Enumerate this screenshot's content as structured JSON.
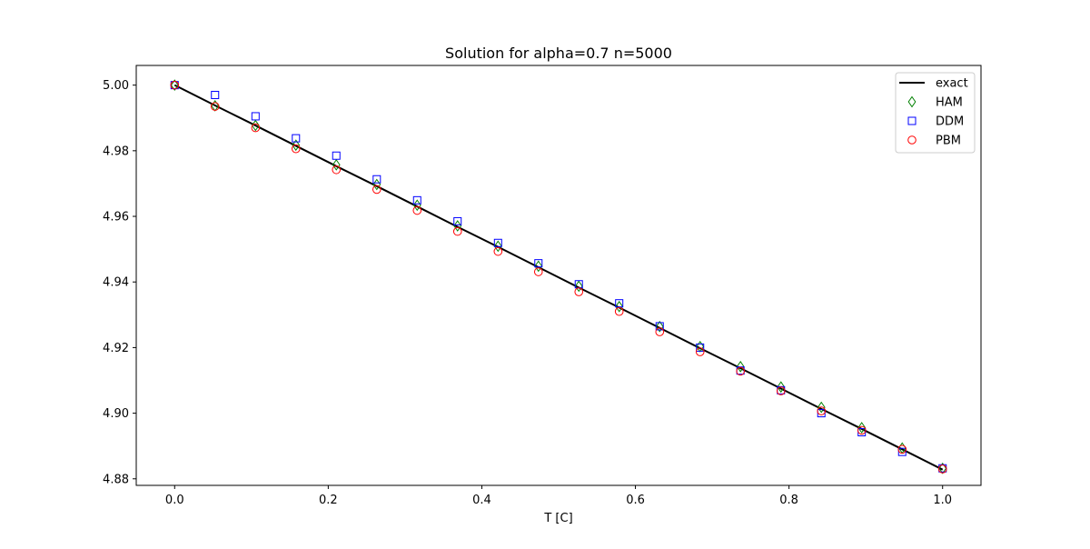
{
  "chart_data": {
    "type": "line",
    "title": "Solution for alpha=0.7 n=5000",
    "xlabel": "T [C]",
    "ylabel": "",
    "xlim": [
      -0.05,
      1.05
    ],
    "ylim": [
      4.878,
      5.006
    ],
    "xticks": [
      0.0,
      0.2,
      0.4,
      0.6,
      0.8,
      1.0
    ],
    "xtick_labels": [
      "0.0",
      "0.2",
      "0.4",
      "0.6",
      "0.8",
      "1.0"
    ],
    "yticks": [
      4.88,
      4.9,
      4.92,
      4.94,
      4.96,
      4.98,
      5.0
    ],
    "ytick_labels": [
      "4.88",
      "4.90",
      "4.92",
      "4.94",
      "4.96",
      "4.98",
      "5.00"
    ],
    "grid": false,
    "legend_position": "top-right",
    "x": [
      0.0,
      0.0526,
      0.1053,
      0.1579,
      0.2105,
      0.2632,
      0.3158,
      0.3684,
      0.4211,
      0.4737,
      0.5263,
      0.5789,
      0.6316,
      0.6842,
      0.7368,
      0.7895,
      0.8421,
      0.8947,
      0.9474,
      1.0
    ],
    "series": [
      {
        "name": "exact",
        "style": "line",
        "color": "#000000",
        "values": [
          5.0,
          4.9938,
          4.9877,
          4.9815,
          4.9753,
          4.9692,
          4.963,
          4.9568,
          4.9507,
          4.9445,
          4.9383,
          4.9322,
          4.926,
          4.9198,
          4.9137,
          4.9075,
          4.9013,
          4.8952,
          4.889,
          4.8828
        ]
      },
      {
        "name": "HAM",
        "style": "diamond",
        "color": "#008000",
        "values": [
          5.0,
          4.9937,
          4.9877,
          4.9817,
          4.9757,
          4.9697,
          4.9634,
          4.9571,
          4.9509,
          4.9448,
          4.9387,
          4.9325,
          4.9264,
          4.9203,
          4.9142,
          4.908,
          4.9018,
          4.8956,
          4.8894,
          4.8832
        ]
      },
      {
        "name": "DDM",
        "style": "square",
        "color": "#0000ff",
        "values": [
          5.0,
          4.997,
          4.9905,
          4.9838,
          4.9785,
          4.9713,
          4.9649,
          4.9585,
          4.9519,
          4.9457,
          4.9393,
          4.9335,
          4.9265,
          4.92,
          4.913,
          4.907,
          4.9,
          4.8942,
          4.8882,
          4.8832
        ]
      },
      {
        "name": "PBM",
        "style": "circle",
        "color": "#ff0000",
        "values": [
          5.0,
          4.9935,
          4.987,
          4.9806,
          4.9742,
          4.9682,
          4.9618,
          4.9554,
          4.9493,
          4.9431,
          4.937,
          4.931,
          4.9248,
          4.9187,
          4.9128,
          4.9068,
          4.9007,
          4.8948,
          4.889,
          4.883
        ]
      }
    ]
  }
}
